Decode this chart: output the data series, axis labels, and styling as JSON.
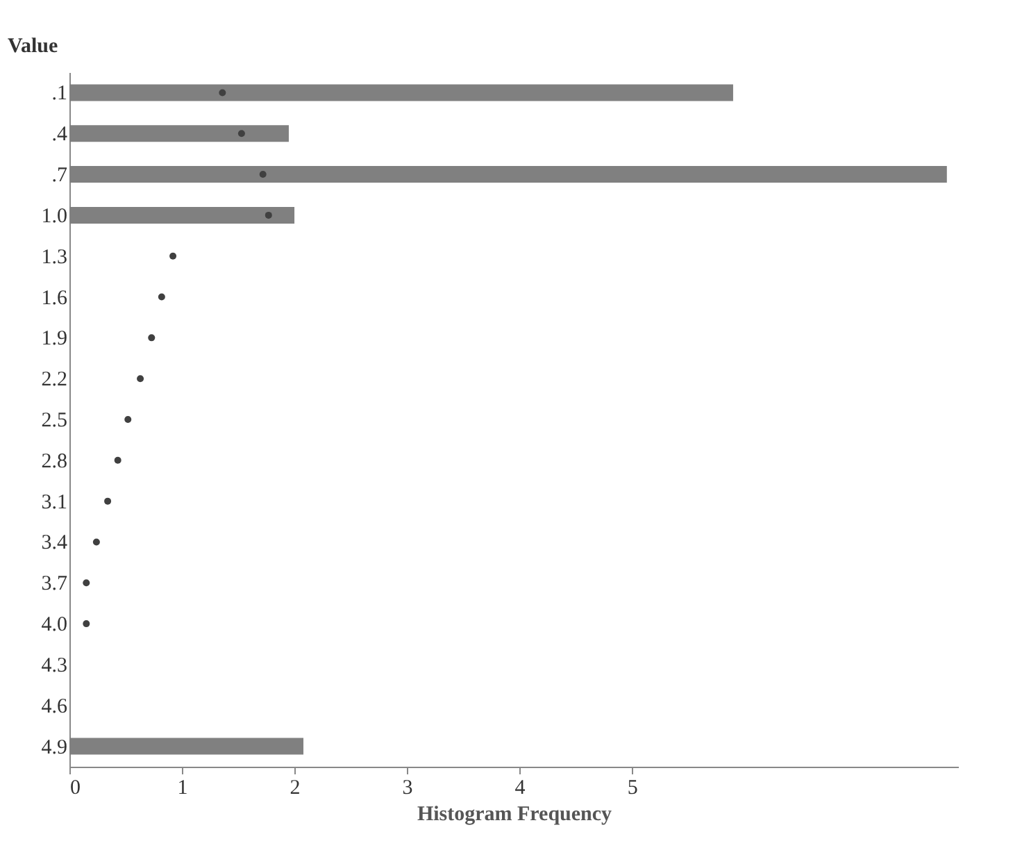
{
  "chart_data": {
    "type": "bar",
    "orientation": "horizontal",
    "xlabel": "Histogram Frequency",
    "ylabel": "Value",
    "categories": [
      ".1",
      ".4",
      ".7",
      "1.0",
      "1.3",
      "1.6",
      "1.9",
      "2.2",
      "2.5",
      "2.8",
      "3.1",
      "3.4",
      "3.7",
      "4.0",
      "4.3",
      "4.6",
      "4.9"
    ],
    "series": [
      {
        "color": "#808080",
        "values": [
          5.9,
          1.95,
          7.8,
          2.0,
          0,
          0,
          0,
          0,
          0,
          0,
          0,
          0,
          0,
          0,
          0,
          0,
          2.08
        ]
      },
      {
        "type": "scatter",
        "color": "#404040",
        "marker": "circle",
        "values": [
          1.36,
          1.53,
          1.72,
          1.77,
          0.92,
          0.82,
          0.73,
          0.63,
          0.52,
          0.43,
          0.34,
          0.24,
          0.15,
          0.15,
          null,
          null,
          null
        ]
      }
    ],
    "xlim": [
      0,
      7.9
    ],
    "xticks": [
      0,
      1,
      2,
      3,
      4,
      5
    ],
    "grid": false
  }
}
